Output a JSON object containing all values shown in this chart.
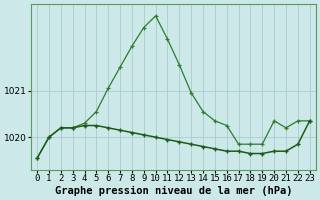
{
  "xlabel": "Graphe pression niveau de la mer (hPa)",
  "background_color": "#cce8e8",
  "grid_color": "#aacccc",
  "line_color1": "#1a5c1a",
  "line_color2": "#1a5c1a",
  "hours": [
    0,
    1,
    2,
    3,
    4,
    5,
    6,
    7,
    8,
    9,
    10,
    11,
    12,
    13,
    14,
    15,
    16,
    17,
    18,
    19,
    20,
    21,
    22,
    23
  ],
  "series_peak": [
    1019.55,
    1020.0,
    1020.2,
    1020.2,
    1020.3,
    1020.55,
    1021.05,
    1021.5,
    1021.95,
    1022.35,
    1022.6,
    1022.1,
    1021.55,
    1020.95,
    1020.55,
    1020.35,
    1020.25,
    1019.85,
    1019.85,
    1019.85,
    1020.35,
    1020.2,
    1020.35,
    1020.35
  ],
  "series_flat": [
    1019.55,
    1020.0,
    1020.2,
    1020.2,
    1020.25,
    1020.25,
    1020.2,
    1020.15,
    1020.1,
    1020.05,
    1020.0,
    1019.95,
    1019.9,
    1019.85,
    1019.8,
    1019.75,
    1019.7,
    1019.7,
    1019.65,
    1019.65,
    1019.7,
    1019.7,
    1019.85,
    1020.35
  ],
  "yticks": [
    1020,
    1021
  ],
  "ylim": [
    1019.3,
    1022.85
  ],
  "xlim": [
    -0.5,
    23.5
  ],
  "tick_fontsize": 6.5,
  "label_fontsize": 7.5
}
